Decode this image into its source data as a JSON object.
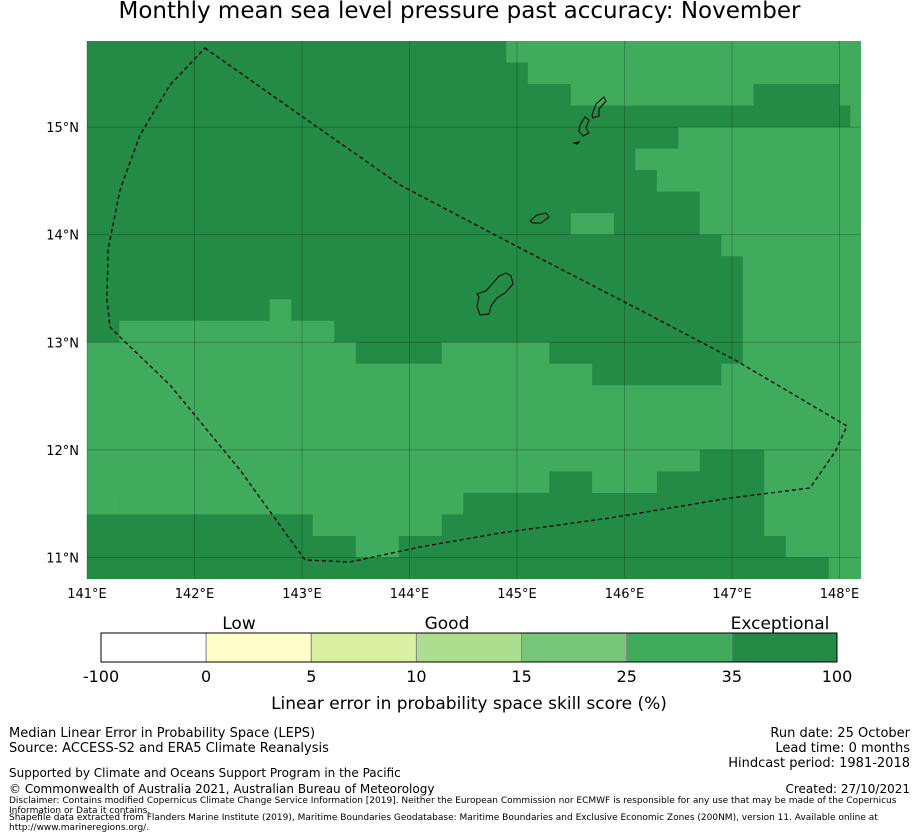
{
  "title": "Monthly mean sea level pressure past accuracy: November",
  "map": {
    "lon_ticks": [
      "141°E",
      "142°E",
      "143°E",
      "144°E",
      "145°E",
      "146°E",
      "147°E",
      "148°E"
    ],
    "lat_ticks": [
      "15°N",
      "14°N",
      "13°N",
      "12°N",
      "11°N"
    ],
    "lon_range": [
      141,
      148.2
    ],
    "lat_range": [
      10.8,
      15.8
    ],
    "cell_deg": 0.2,
    "colors": {
      "exceptional": "#238b45",
      "good25": "#41ab5d"
    }
  },
  "legend": {
    "categories": [
      "Low",
      "Good",
      "Exceptional"
    ],
    "bin_edges": [
      "-100",
      "0",
      "5",
      "10",
      "15",
      "25",
      "35",
      "100"
    ],
    "bin_colors": [
      "#ffffff",
      "#ffffcc",
      "#d9f0a3",
      "#addd8e",
      "#78c679",
      "#41ab5d",
      "#238b45"
    ],
    "axis_label": "Linear error in probability space skill score (%)"
  },
  "footer": {
    "left": [
      "Median Linear Error in Probability Space (LEPS)",
      "Source: ACCESS-S2 and ERA5 Climate Reanalysis"
    ],
    "support": "Supported by Climate and Oceans Support Program in the Pacific",
    "copyright": "© Commonwealth of Australia 2021, Australian Bureau of Meteorology",
    "right": [
      "Run date: 25 October",
      "Lead time: 0 months",
      "Hindcast period: 1981-2018"
    ],
    "created": "Created: 27/10/2021",
    "disclaimer": "Disclaimer: Contains modified Copernicus Climate Change Service Information [2019]. Neither the European Commission nor ECMWF is responsible for any use that may be made of the Copernicus Information or Data it contains.",
    "shapefile": "Shapefile data extracted from Flanders Marine Institute (2019), Maritime Boundaries Geodatabase: Maritime Boundaries and Exclusive Economic Zones (200NM), version 11. Available online at http://www.marineregions.org/."
  }
}
